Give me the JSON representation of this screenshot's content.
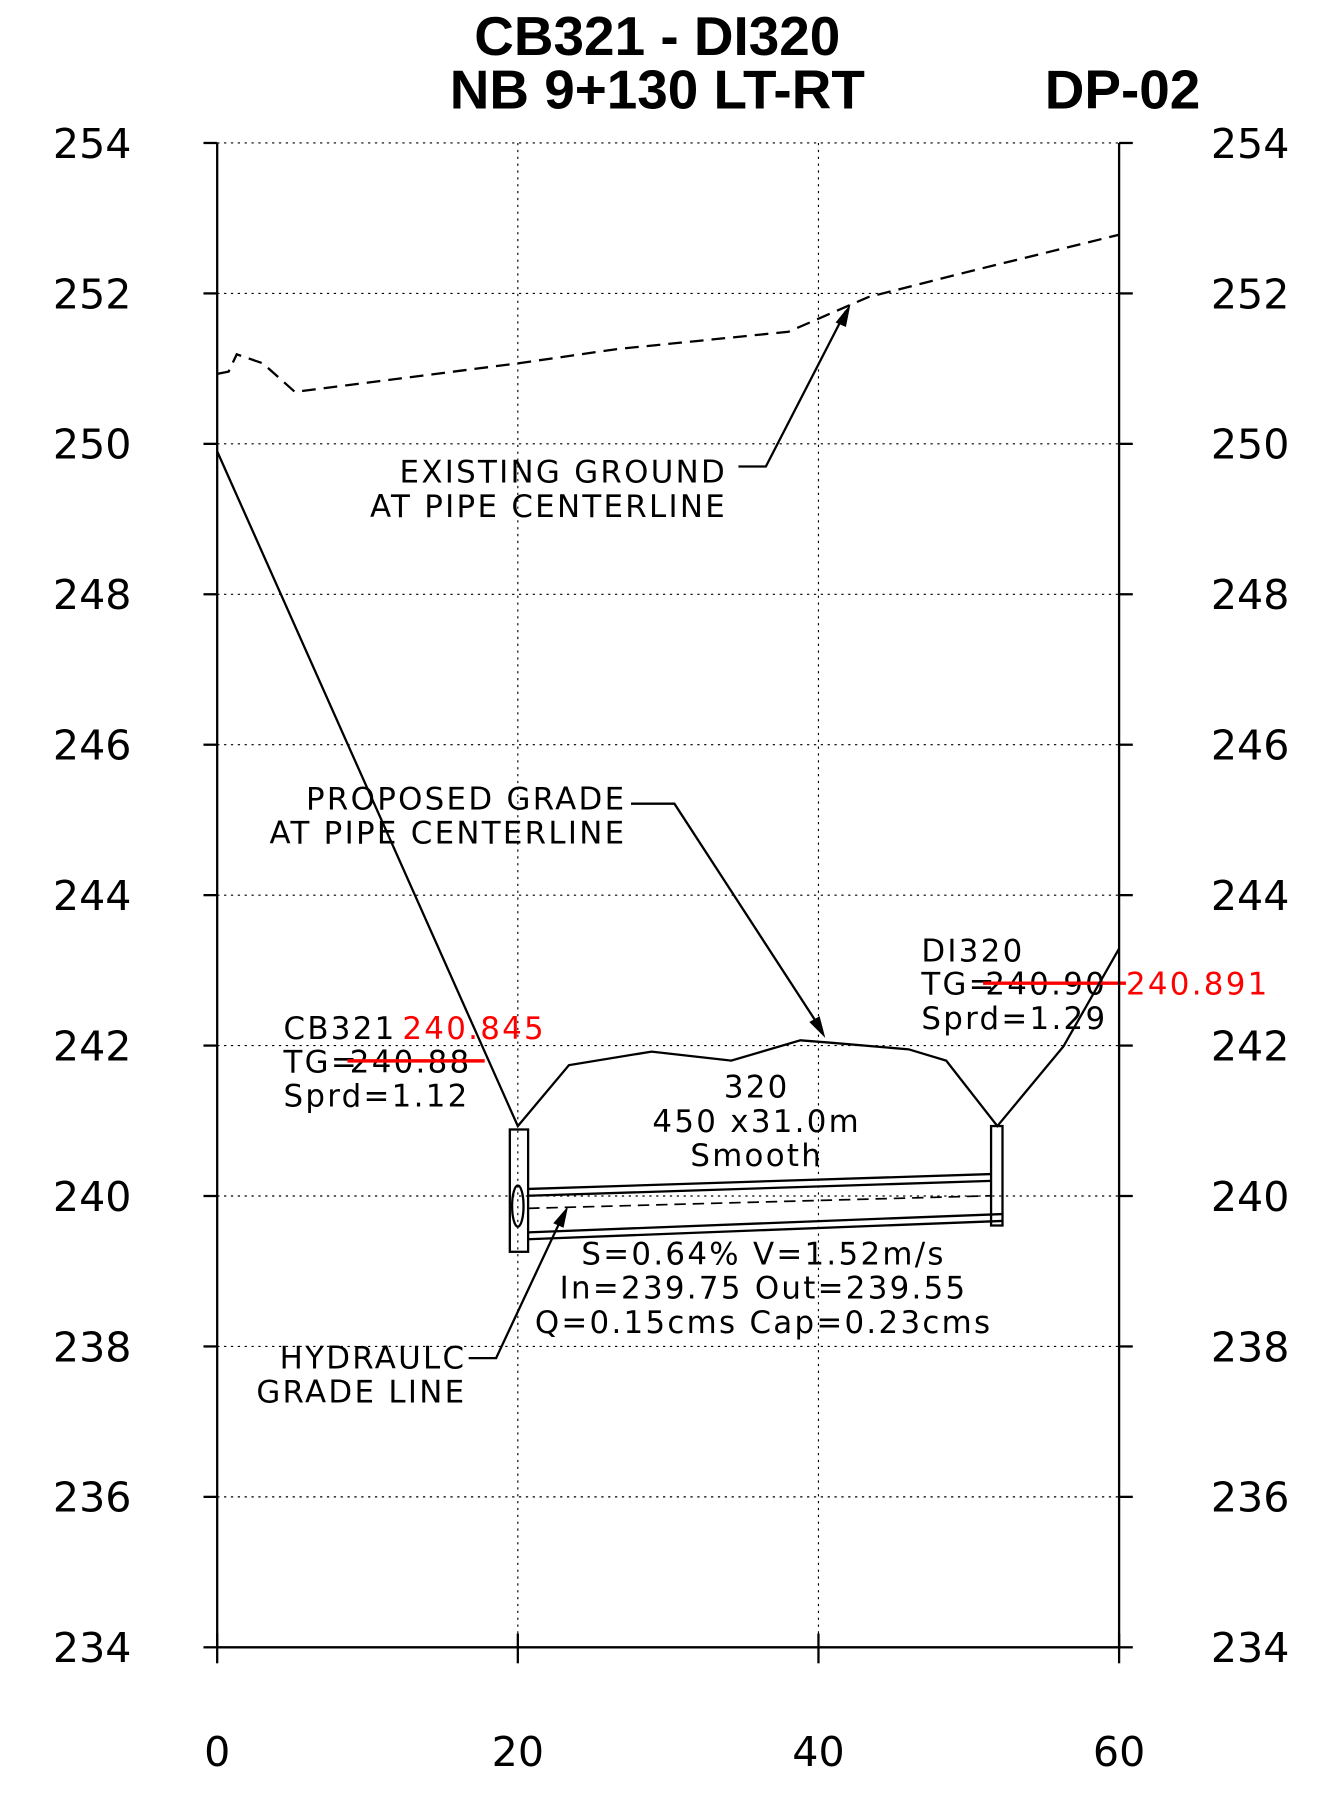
{
  "chart_data": {
    "type": "line",
    "title": "CB321 - DI320",
    "subtitle": "NB 9+130 LT-RT",
    "sheet": "DP-02",
    "xlim": [
      0,
      60
    ],
    "xticks": [
      0,
      20,
      40,
      60
    ],
    "ylim": [
      234,
      254
    ],
    "yticks": [
      234,
      236,
      238,
      240,
      242,
      244,
      246,
      248,
      250,
      252,
      254
    ],
    "y2lim": [
      234,
      254
    ],
    "y2ticks": [
      234,
      236,
      238,
      240,
      242,
      244,
      246,
      248,
      250,
      252,
      254
    ],
    "grid": true,
    "series": [
      {
        "name": "EXISTING GROUND",
        "color": "#000000",
        "dash": true,
        "x": [
          0,
          0.76,
          1.3,
          3.04,
          5.17,
          20,
          26.6,
          38,
          43.3,
          50.2,
          60
        ],
        "values": [
          250.93,
          250.96,
          251.19,
          251.07,
          250.69,
          251.07,
          251.26,
          251.49,
          251.95,
          252.3,
          252.78
        ]
      },
      {
        "name": "PROPOSED GRADE",
        "color": "#000000",
        "dash": false,
        "x": [
          0,
          20,
          23.4,
          28.9,
          34.2,
          38.8,
          40.7,
          46,
          48.5,
          51.9,
          56.3,
          60
        ],
        "values": [
          249.9,
          240.93,
          241.74,
          241.92,
          241.8,
          242.07,
          242.04,
          241.95,
          241.8,
          240.93,
          241.99,
          243.29
        ]
      }
    ],
    "annotations": {
      "existing_ground": [
        "EXISTING GROUND",
        "AT PIPE CENTERLINE"
      ],
      "proposed_grade": [
        "PROPOSED GRADE",
        "AT PIPE CENTERLINE"
      ],
      "hgl": [
        "HYDRAULC",
        "GRADE LINE"
      ],
      "cb321": {
        "name": "CB321",
        "revised": "240.845",
        "tg_prefix": "TG=",
        "tg": "240.88",
        "sprd": "Sprd=1.12"
      },
      "di320": {
        "name": "DI320",
        "tg_prefix": "TG=",
        "tg": "240.90",
        "revised": "240.891",
        "sprd": "Sprd=1.29"
      },
      "pipe": [
        "320",
        "450 x31.0m",
        "Smooth",
        "S=0.64% V=1.52m/s",
        "In=239.75 Out=239.55",
        "Q=0.15cms Cap=0.23cms"
      ]
    }
  }
}
